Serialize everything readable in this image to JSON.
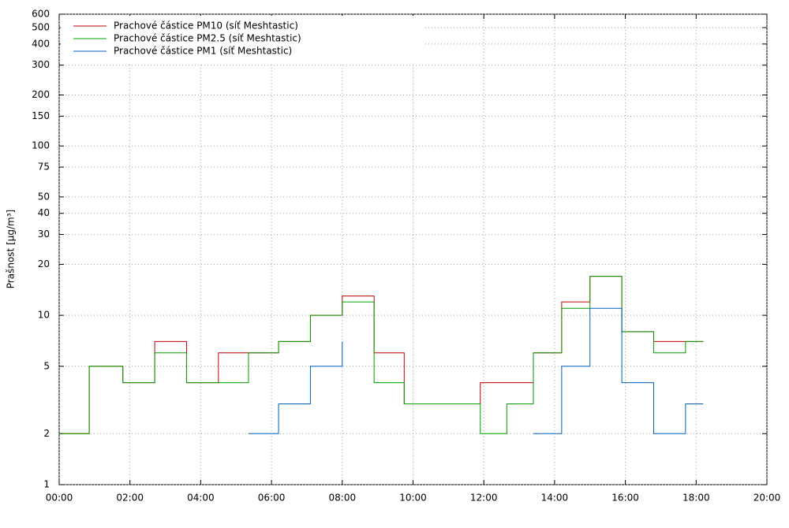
{
  "chart_data": {
    "type": "step",
    "y_label": "Prašnost [µg/m³]",
    "log_scale_y": true,
    "grid": true,
    "legend_position": "top-left",
    "xlim": [
      0,
      20
    ],
    "ylim": [
      1,
      600
    ],
    "xticks": [
      {
        "value": 0,
        "label": "00:00"
      },
      {
        "value": 2,
        "label": "02:00"
      },
      {
        "value": 4,
        "label": "04:00"
      },
      {
        "value": 6,
        "label": "06:00"
      },
      {
        "value": 8,
        "label": "08:00"
      },
      {
        "value": 10,
        "label": "10:00"
      },
      {
        "value": 12,
        "label": "12:00"
      },
      {
        "value": 14,
        "label": "14:00"
      },
      {
        "value": 16,
        "label": "16:00"
      },
      {
        "value": 18,
        "label": "18:00"
      },
      {
        "value": 20,
        "label": "20:00"
      }
    ],
    "yticks": [
      1,
      2,
      5,
      10,
      20,
      30,
      40,
      50,
      75,
      100,
      150,
      200,
      300,
      400,
      500,
      600
    ],
    "x": [
      0,
      0.85,
      1.8,
      2.7,
      3.6,
      4.5,
      5.35,
      6.2,
      7.1,
      8.0,
      8.9,
      9.75,
      11.9,
      12.65,
      13.4,
      14.2,
      15.0,
      15.9,
      16.8,
      17.7,
      18.2
    ],
    "series": [
      {
        "name": "Prachové částice PM10 (síť Meshtastic)",
        "color": "#c00000",
        "values": [
          2,
          5,
          4,
          7,
          4,
          6,
          6,
          7,
          10,
          13,
          6,
          3,
          4,
          4,
          6,
          12,
          17,
          8,
          7,
          7,
          7
        ]
      },
      {
        "name": "Prachové částice PM2.5 (síť Meshtastic)",
        "color": "#00a000",
        "values": [
          2,
          5,
          4,
          6,
          4,
          4,
          6,
          7,
          10,
          12,
          4,
          3,
          2,
          3,
          6,
          11,
          17,
          8,
          6,
          7,
          7
        ]
      },
      {
        "name": "Prachové částice PM1 (síť Meshtastic)",
        "color": "#0060c0",
        "values": [
          null,
          null,
          null,
          null,
          null,
          null,
          2,
          3,
          5,
          7,
          null,
          null,
          null,
          null,
          2,
          5,
          11,
          4,
          2,
          3,
          3
        ]
      }
    ]
  }
}
